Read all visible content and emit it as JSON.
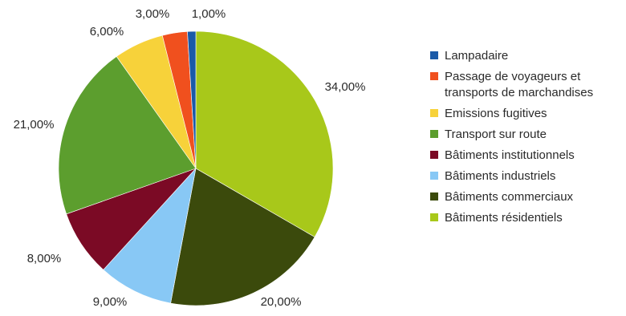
{
  "chart_data": {
    "type": "pie",
    "legend_position": "right",
    "slices": [
      {
        "label": "Lampadaire",
        "value": 1.0,
        "value_label": "1,00%",
        "color": "#1a5aa8"
      },
      {
        "label": "Passage de voyageurs et transports de marchandises",
        "legend_lines": [
          "Passage de voyageurs et",
          "transports de marchandises"
        ],
        "value": 3.0,
        "value_label": "3,00%",
        "color": "#f0501e"
      },
      {
        "label": "Emissions fugitives",
        "value": 6.0,
        "value_label": "6,00%",
        "color": "#f7d23a"
      },
      {
        "label": "Transport sur route",
        "value": 21.0,
        "value_label": "21,00%",
        "color": "#5c9e2e"
      },
      {
        "label": "Bâtiments institutionnels",
        "value": 8.0,
        "value_label": "8,00%",
        "color": "#7b0a25"
      },
      {
        "label": "Bâtiments industriels",
        "value": 9.0,
        "value_label": "9,00%",
        "color": "#88c8f5"
      },
      {
        "label": "Bâtiments commerciaux",
        "value": 20.0,
        "value_label": "20,00%",
        "color": "#3b4a0c"
      },
      {
        "label": "Bâtiments résidentiels",
        "value": 34.0,
        "value_label": "34,00%",
        "color": "#a8c81a"
      }
    ],
    "draw_order": [
      7,
      6,
      5,
      4,
      3,
      2,
      1,
      0
    ]
  }
}
